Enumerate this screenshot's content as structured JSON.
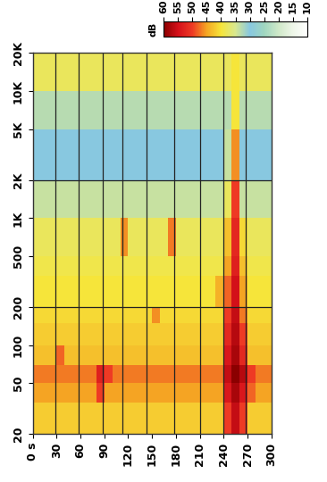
{
  "chart_data": {
    "type": "heatmap",
    "log": "y",
    "grid": false,
    "x_bins": [
      0,
      10,
      20,
      30,
      40,
      50,
      60,
      70,
      80,
      90,
      100,
      110,
      120,
      130,
      140,
      150,
      160,
      170,
      180,
      190,
      200,
      210,
      220,
      230,
      240,
      250,
      260,
      270,
      280,
      290,
      300
    ],
    "y_bins": [
      20,
      35,
      50,
      70,
      100,
      150,
      200,
      350,
      500,
      1000,
      2000,
      5000,
      10000,
      20000
    ],
    "cells": [
      [
        42,
        42,
        42,
        42,
        42,
        42,
        42,
        42,
        42,
        42,
        42,
        42,
        42,
        42,
        42,
        42,
        42,
        42,
        42,
        42,
        42,
        42,
        42,
        42,
        50,
        56,
        50,
        42,
        42,
        42
      ],
      [
        45,
        45,
        45,
        45,
        45,
        45,
        45,
        45,
        50,
        45,
        45,
        45,
        45,
        45,
        45,
        45,
        45,
        45,
        45,
        45,
        45,
        45,
        45,
        45,
        54,
        58,
        54,
        48,
        45,
        45
      ],
      [
        47,
        47,
        47,
        47,
        47,
        47,
        47,
        47,
        53,
        50,
        47,
        47,
        47,
        47,
        47,
        47,
        47,
        47,
        47,
        47,
        47,
        47,
        47,
        47,
        56,
        60,
        57,
        50,
        47,
        47
      ],
      [
        43,
        43,
        43,
        48,
        43,
        43,
        43,
        43,
        43,
        43,
        43,
        43,
        43,
        43,
        43,
        43,
        43,
        43,
        43,
        43,
        43,
        43,
        43,
        43,
        54,
        58,
        52,
        43,
        43,
        43
      ],
      [
        42,
        42,
        42,
        42,
        42,
        42,
        42,
        42,
        42,
        42,
        42,
        42,
        42,
        42,
        42,
        42,
        42,
        42,
        42,
        42,
        42,
        42,
        42,
        42,
        52,
        57,
        50,
        42,
        42,
        42
      ],
      [
        41,
        41,
        41,
        41,
        41,
        41,
        41,
        41,
        41,
        41,
        41,
        41,
        41,
        41,
        41,
        46,
        41,
        41,
        41,
        41,
        41,
        41,
        41,
        41,
        50,
        56,
        47,
        41,
        41,
        41
      ],
      [
        40,
        40,
        40,
        40,
        40,
        40,
        40,
        40,
        40,
        40,
        40,
        40,
        40,
        40,
        40,
        40,
        40,
        40,
        40,
        40,
        40,
        40,
        40,
        44,
        48,
        55,
        45,
        40,
        40,
        40
      ],
      [
        39,
        39,
        39,
        39,
        39,
        39,
        39,
        39,
        39,
        39,
        39,
        39,
        39,
        39,
        39,
        39,
        39,
        39,
        39,
        39,
        39,
        39,
        39,
        39,
        45,
        53,
        43,
        39,
        39,
        39
      ],
      [
        38,
        38,
        38,
        38,
        38,
        38,
        38,
        38,
        38,
        38,
        38,
        46,
        38,
        38,
        38,
        38,
        38,
        47,
        38,
        38,
        38,
        38,
        38,
        38,
        43,
        52,
        41,
        38,
        38,
        38
      ],
      [
        34,
        34,
        34,
        34,
        34,
        34,
        34,
        34,
        34,
        34,
        34,
        34,
        34,
        34,
        34,
        34,
        34,
        34,
        34,
        34,
        34,
        34,
        34,
        34,
        38,
        50,
        34,
        34,
        34,
        34
      ],
      [
        30,
        30,
        30,
        30,
        30,
        30,
        30,
        30,
        30,
        30,
        30,
        30,
        30,
        30,
        30,
        30,
        30,
        30,
        30,
        30,
        30,
        30,
        30,
        30,
        34,
        46,
        30,
        30,
        30,
        30
      ],
      [
        33,
        33,
        33,
        33,
        33,
        33,
        33,
        33,
        33,
        33,
        33,
        33,
        33,
        33,
        33,
        33,
        33,
        33,
        33,
        33,
        33,
        33,
        33,
        33,
        33,
        40,
        33,
        33,
        33,
        33
      ],
      [
        38,
        38,
        38,
        38,
        38,
        38,
        38,
        38,
        38,
        38,
        38,
        38,
        38,
        38,
        38,
        38,
        38,
        38,
        38,
        38,
        38,
        38,
        38,
        38,
        38,
        40,
        38,
        38,
        38,
        38
      ]
    ],
    "xlim": [
      0,
      300
    ],
    "xticks": [
      {
        "value": 0,
        "label": "0 s"
      },
      30,
      60,
      90,
      120,
      150,
      180,
      210,
      240,
      270,
      300
    ],
    "ylim": [
      20,
      20000
    ],
    "yticks": [
      20,
      50,
      100,
      200,
      500,
      {
        "value": 1000,
        "label": "1K"
      },
      {
        "value": 2000,
        "label": "2K"
      },
      {
        "value": 5000,
        "label": "5K"
      },
      {
        "value": 10000,
        "label": "10K"
      },
      {
        "value": 20000,
        "label": "20K"
      }
    ],
    "marker_lines_x": [
      28,
      58,
      88,
      113,
      143,
      178,
      210,
      240,
      268
    ],
    "marker_lines_y": [
      200,
      2000
    ],
    "colorbar_label": "dB",
    "colorbar_range": [
      10,
      60
    ],
    "colorbar_ticks": [
      60,
      55,
      50,
      45,
      40,
      35,
      30,
      25,
      20,
      15,
      10
    ]
  }
}
